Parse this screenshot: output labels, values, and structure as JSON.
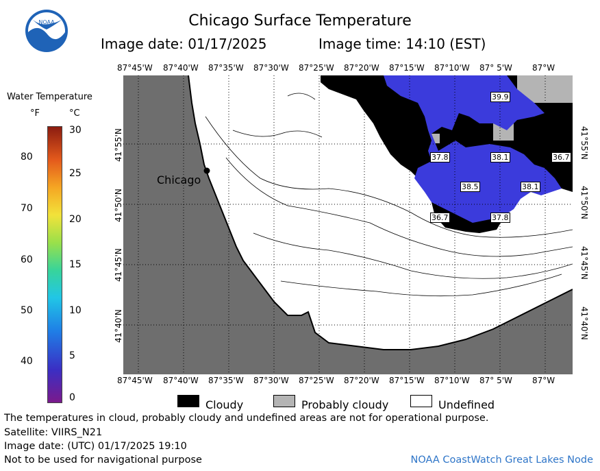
{
  "header": {
    "title": "Chicago Surface Temperature",
    "image_date": "Image date: 01/17/2025",
    "image_time": "Image time: 14:10 (EST)"
  },
  "logo": {
    "text": "NOAA",
    "colors": {
      "outer": "#1f63b7",
      "inner": "#ffffff",
      "bird": "#1f63b7"
    }
  },
  "scale": {
    "title": "Water Temperature",
    "unit_f": "°F",
    "unit_c": "°C",
    "f_ticks": [
      "80",
      "70",
      "60",
      "50",
      "40"
    ],
    "c_ticks": [
      "30",
      "25",
      "20",
      "15",
      "10",
      "5",
      "0"
    ]
  },
  "map": {
    "lon_labels": [
      "87°45'W",
      "87°40'W",
      "87°35'W",
      "87°30'W",
      "87°25'W",
      "87°20'W",
      "87°15'W",
      "87°10'W",
      "87° 5'W",
      "87°W"
    ],
    "lat_labels": [
      "41°55'N",
      "41°50'N",
      "41°45'N",
      "41°40'N"
    ],
    "city_label": "Chicago",
    "temperatures": [
      "39.9",
      "37.8",
      "38.1",
      "36.7",
      "38.5",
      "38.1",
      "36.7",
      "37.8"
    ],
    "colors": {
      "land": "#6e6e6e",
      "cloudy": "#000000",
      "probably_cloudy": "#b4b4b4",
      "water_temp": "#3b3bdc",
      "grid": "#000000"
    }
  },
  "legend": {
    "cloudy": "Cloudy",
    "probably_cloudy": "Probably cloudy",
    "undefined": "Undefined"
  },
  "footer": {
    "disclaimer": "The temperatures in cloud, probably cloudy and undefined areas are not for operational purpose.",
    "satellite": "Satellite: VIIRS_N21",
    "utc_date": "Image date: (UTC) 01/17/2025  19:10",
    "nav_warning": "Not to be used for navigational purpose",
    "node": "NOAA CoastWatch Great Lakes Node"
  }
}
